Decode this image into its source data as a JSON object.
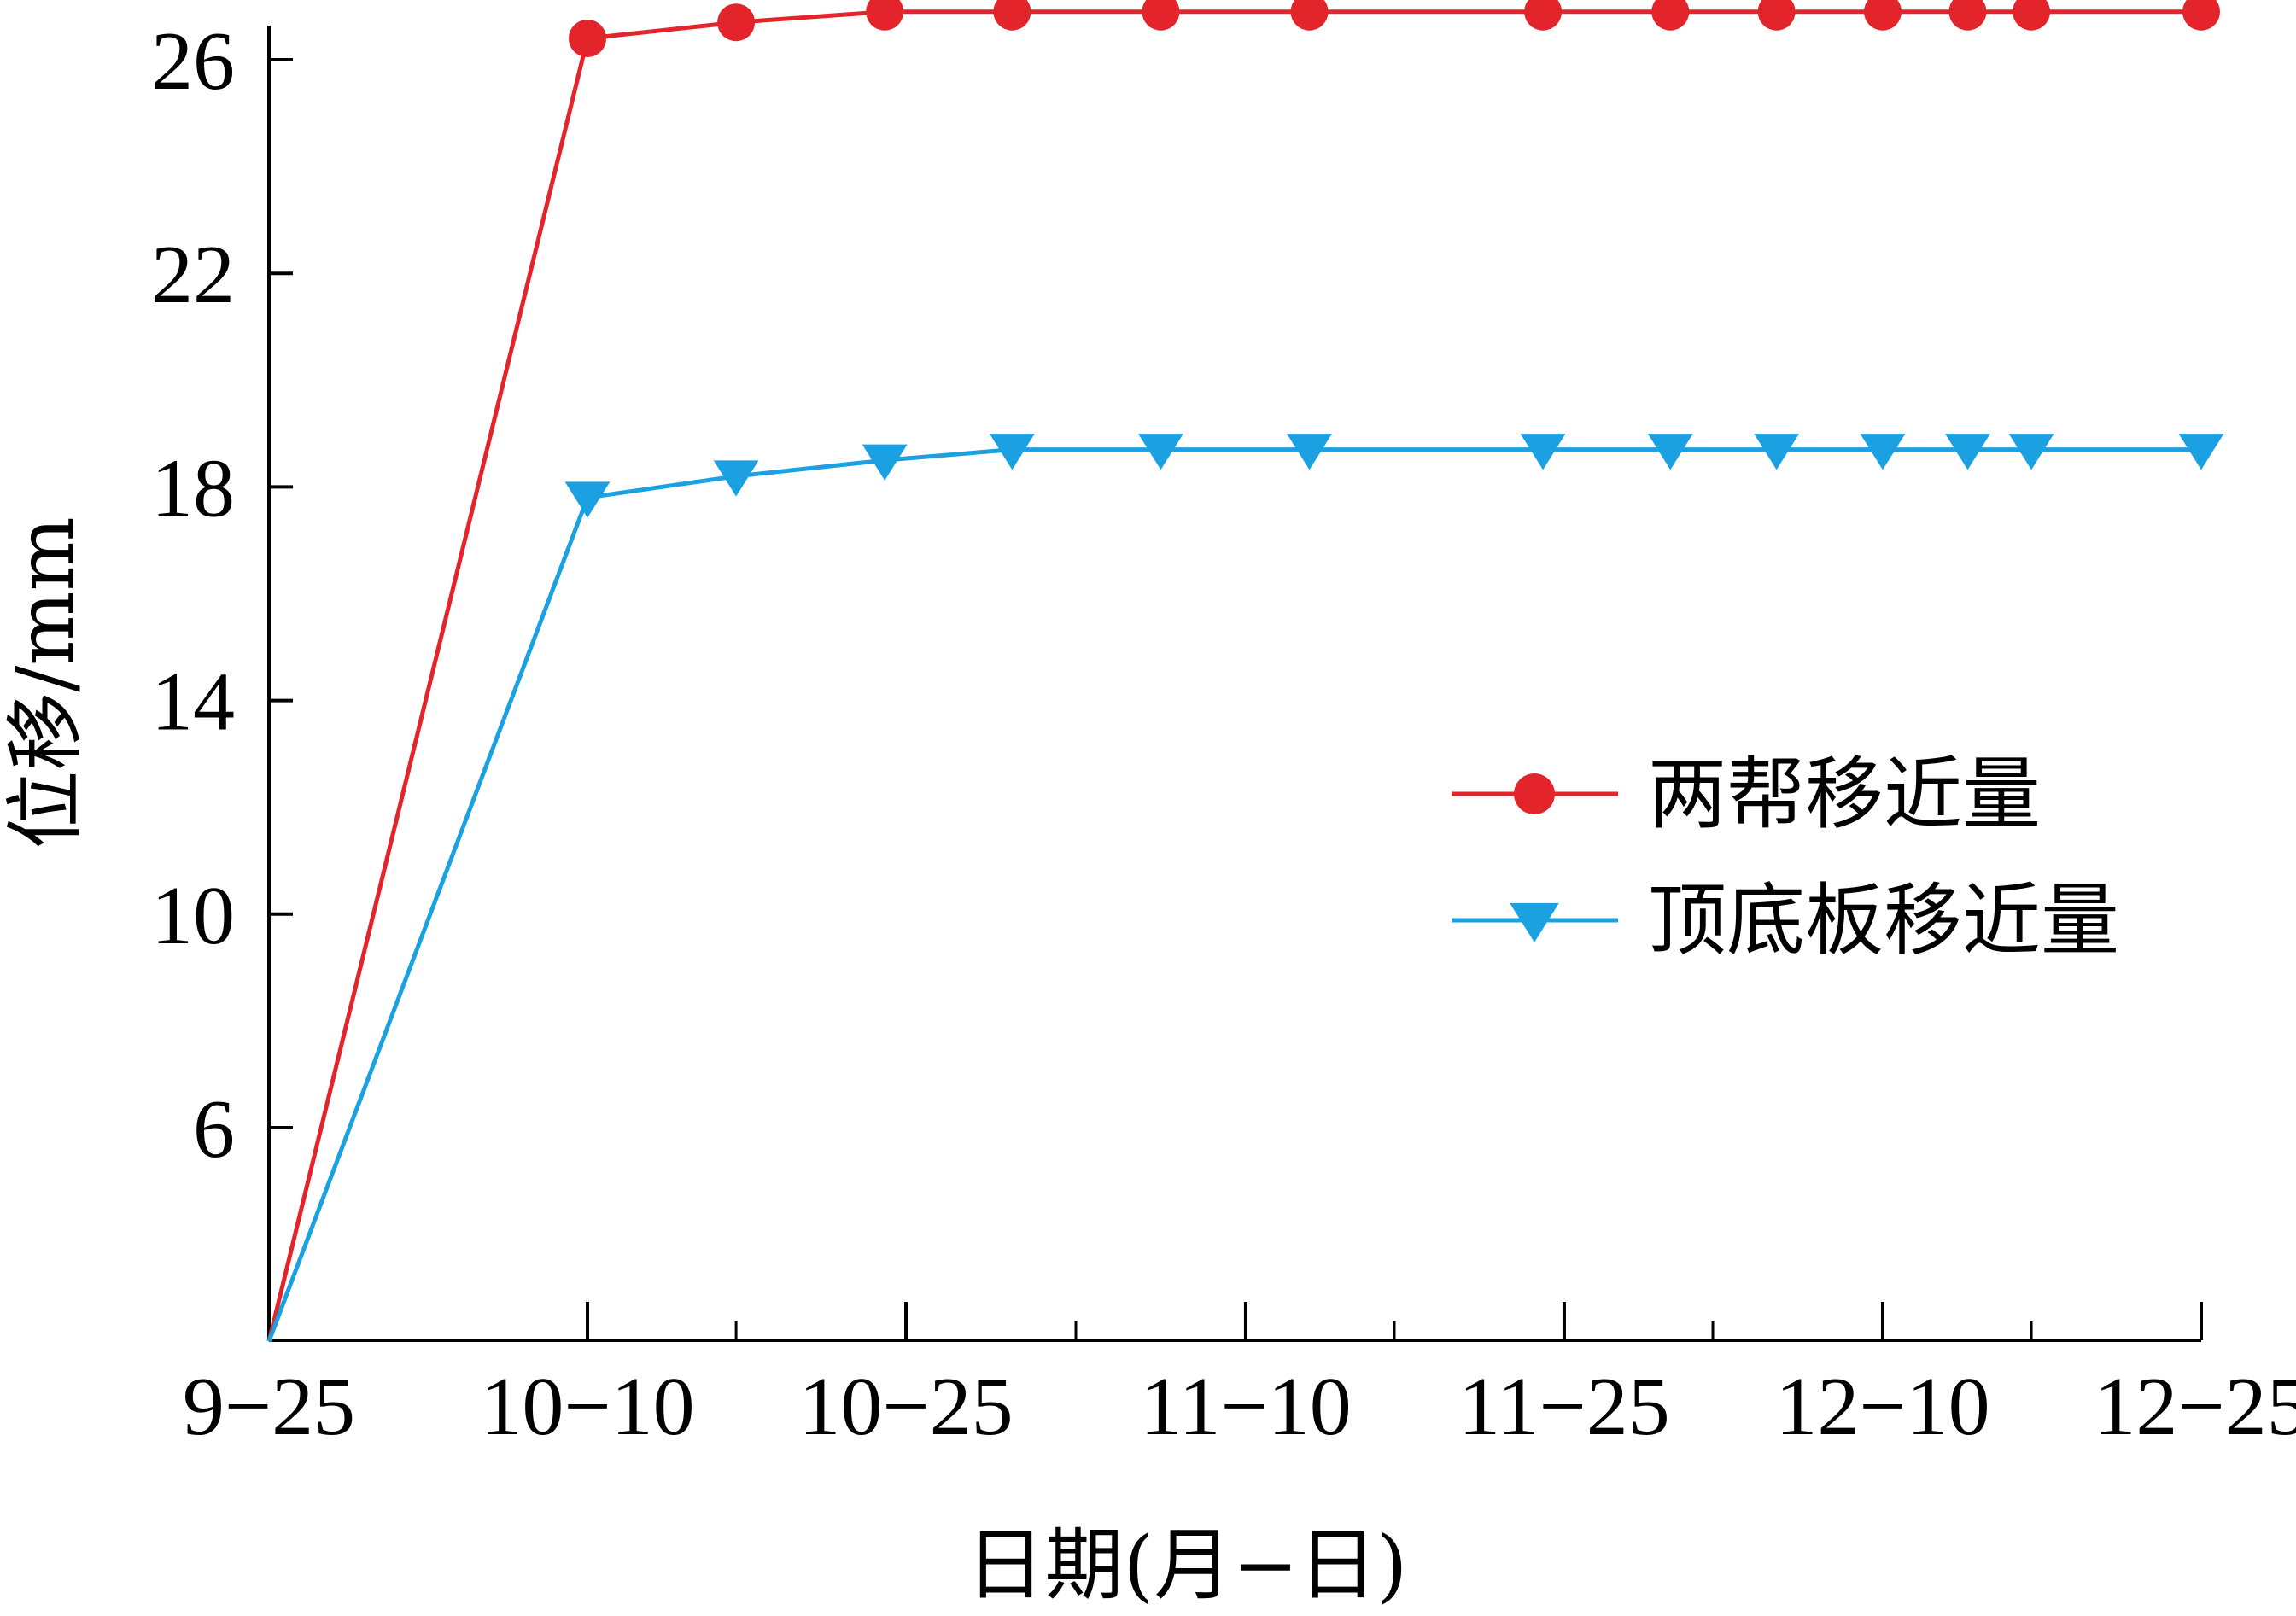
{
  "chart_data": {
    "type": "line",
    "title": "",
    "xlabel": "日期(月−日)",
    "ylabel": "位移/mm",
    "x_tick_labels": [
      "9−25",
      "10−10",
      "10−25",
      "11−10",
      "11−25",
      "12−10",
      "12−25"
    ],
    "y_ticks": [
      6,
      10,
      14,
      18,
      22,
      26
    ],
    "ylim": [
      2,
      26.8
    ],
    "xlim": [
      "09-25",
      "12-25"
    ],
    "legend_position": "right",
    "grid": false,
    "series": [
      {
        "name": "两帮移近量",
        "color": "#e3242b",
        "marker": "circle",
        "x": [
          "09-25",
          "10-10",
          "10-17",
          "10-24",
          "10-30",
          "11-06",
          "11-13",
          "11-24",
          "11-30",
          "12-05",
          "12-10",
          "12-14",
          "12-17",
          "12-25"
        ],
        "y": [
          2.0,
          26.4,
          26.7,
          26.9,
          26.9,
          26.9,
          26.9,
          26.9,
          26.9,
          26.9,
          26.9,
          26.9,
          26.9,
          26.9
        ]
      },
      {
        "name": "顶底板移近量",
        "color": "#1ba1e2",
        "marker": "triangle-down",
        "x": [
          "09-25",
          "10-10",
          "10-17",
          "10-24",
          "10-30",
          "11-06",
          "11-13",
          "11-24",
          "11-30",
          "12-05",
          "12-10",
          "12-14",
          "12-17",
          "12-25"
        ],
        "y": [
          2.0,
          17.8,
          18.2,
          18.5,
          18.7,
          18.7,
          18.7,
          18.7,
          18.7,
          18.7,
          18.7,
          18.7,
          18.7,
          18.7
        ]
      }
    ]
  }
}
